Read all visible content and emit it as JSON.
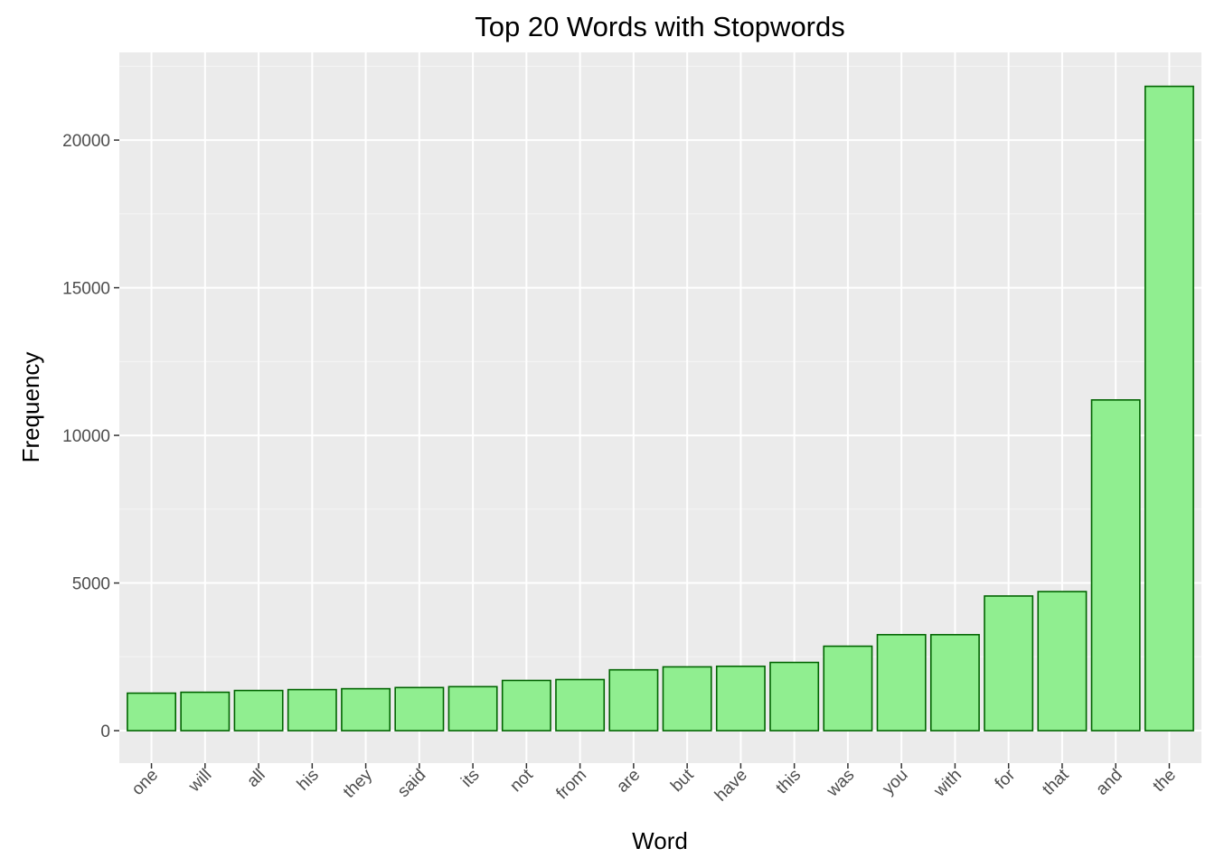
{
  "chart_data": {
    "type": "bar",
    "title": "Top 20 Words with Stopwords",
    "xlabel": "Word",
    "ylabel": "Frequency",
    "categories": [
      "one",
      "will",
      "all",
      "his",
      "they",
      "said",
      "its",
      "not",
      "from",
      "are",
      "but",
      "have",
      "this",
      "was",
      "you",
      "with",
      "for",
      "that",
      "and",
      "the"
    ],
    "values": [
      1270,
      1300,
      1360,
      1390,
      1420,
      1460,
      1490,
      1700,
      1730,
      2060,
      2160,
      2180,
      2310,
      2860,
      3250,
      3250,
      4560,
      4710,
      11200,
      21820
    ],
    "ylim": [
      -1100,
      22970
    ],
    "yticks": [
      0,
      5000,
      10000,
      15000,
      20000
    ],
    "grid": true,
    "legend": "none",
    "colors": {
      "bar_fill": "#90ee90",
      "bar_stroke": "#006400",
      "panel_background": "#ebebeb",
      "grid_major": "#ffffff",
      "grid_minor": "#f5f5f5"
    }
  }
}
